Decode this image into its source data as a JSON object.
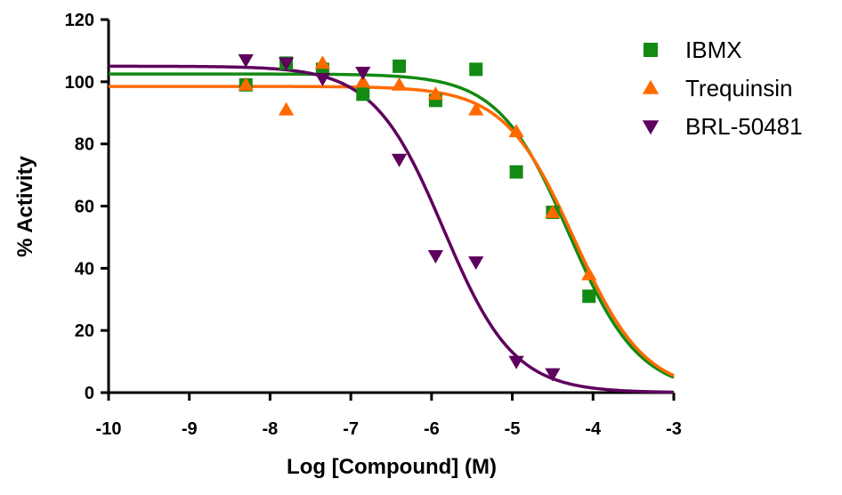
{
  "chart_data": {
    "type": "scatter",
    "title": "",
    "xlabel": "Log [Compound] (M)",
    "ylabel": "% Activity",
    "xlim": [
      -10,
      -3
    ],
    "ylim": [
      0,
      120
    ],
    "x_ticks": [
      -10,
      -9,
      -8,
      -7,
      -6,
      -5,
      -4,
      -3
    ],
    "y_ticks": [
      0,
      20,
      40,
      60,
      80,
      100,
      120
    ],
    "x_tick_labels": [
      "-10",
      "-9",
      "-8",
      "-7",
      "-6",
      "-5",
      "-4",
      "-3"
    ],
    "y_tick_labels": [
      "0",
      "20",
      "40",
      "60",
      "80",
      "100",
      "120"
    ],
    "grid": false,
    "legend_position": "top-right",
    "series": [
      {
        "name": "IBMX",
        "color": "#138A13",
        "marker": "square",
        "x": [
          -8.3,
          -7.8,
          -7.35,
          -6.85,
          -6.4,
          -5.95,
          -5.45,
          -4.95,
          -4.5,
          -4.05
        ],
        "y": [
          99,
          106,
          104,
          96,
          105,
          94,
          104,
          71,
          58,
          31
        ],
        "fit": {
          "top": 102.5,
          "bottom": 0,
          "logIC50": -4.3,
          "hill": 1
        }
      },
      {
        "name": "Trequinsin",
        "color": "#FF6A00",
        "marker": "triangle-up",
        "x": [
          -8.3,
          -7.8,
          -7.35,
          -6.85,
          -6.4,
          -5.95,
          -5.45,
          -4.95,
          -4.5,
          -4.05
        ],
        "y": [
          99,
          91,
          106,
          100,
          99,
          96,
          91,
          84,
          58,
          38
        ],
        "fit": {
          "top": 98.5,
          "bottom": 0,
          "logIC50": -4.23,
          "hill": 1
        }
      },
      {
        "name": "BRL-50481",
        "color": "#5E005E",
        "marker": "triangle-down",
        "x": [
          -8.3,
          -7.8,
          -7.35,
          -6.85,
          -6.4,
          -5.95,
          -5.45,
          -4.95,
          -4.5
        ],
        "y": [
          107,
          106,
          101,
          103,
          75,
          44,
          42,
          10,
          6
        ],
        "fit": {
          "top": 105,
          "bottom": 0,
          "logIC50": -5.85,
          "hill": 1
        }
      }
    ]
  }
}
